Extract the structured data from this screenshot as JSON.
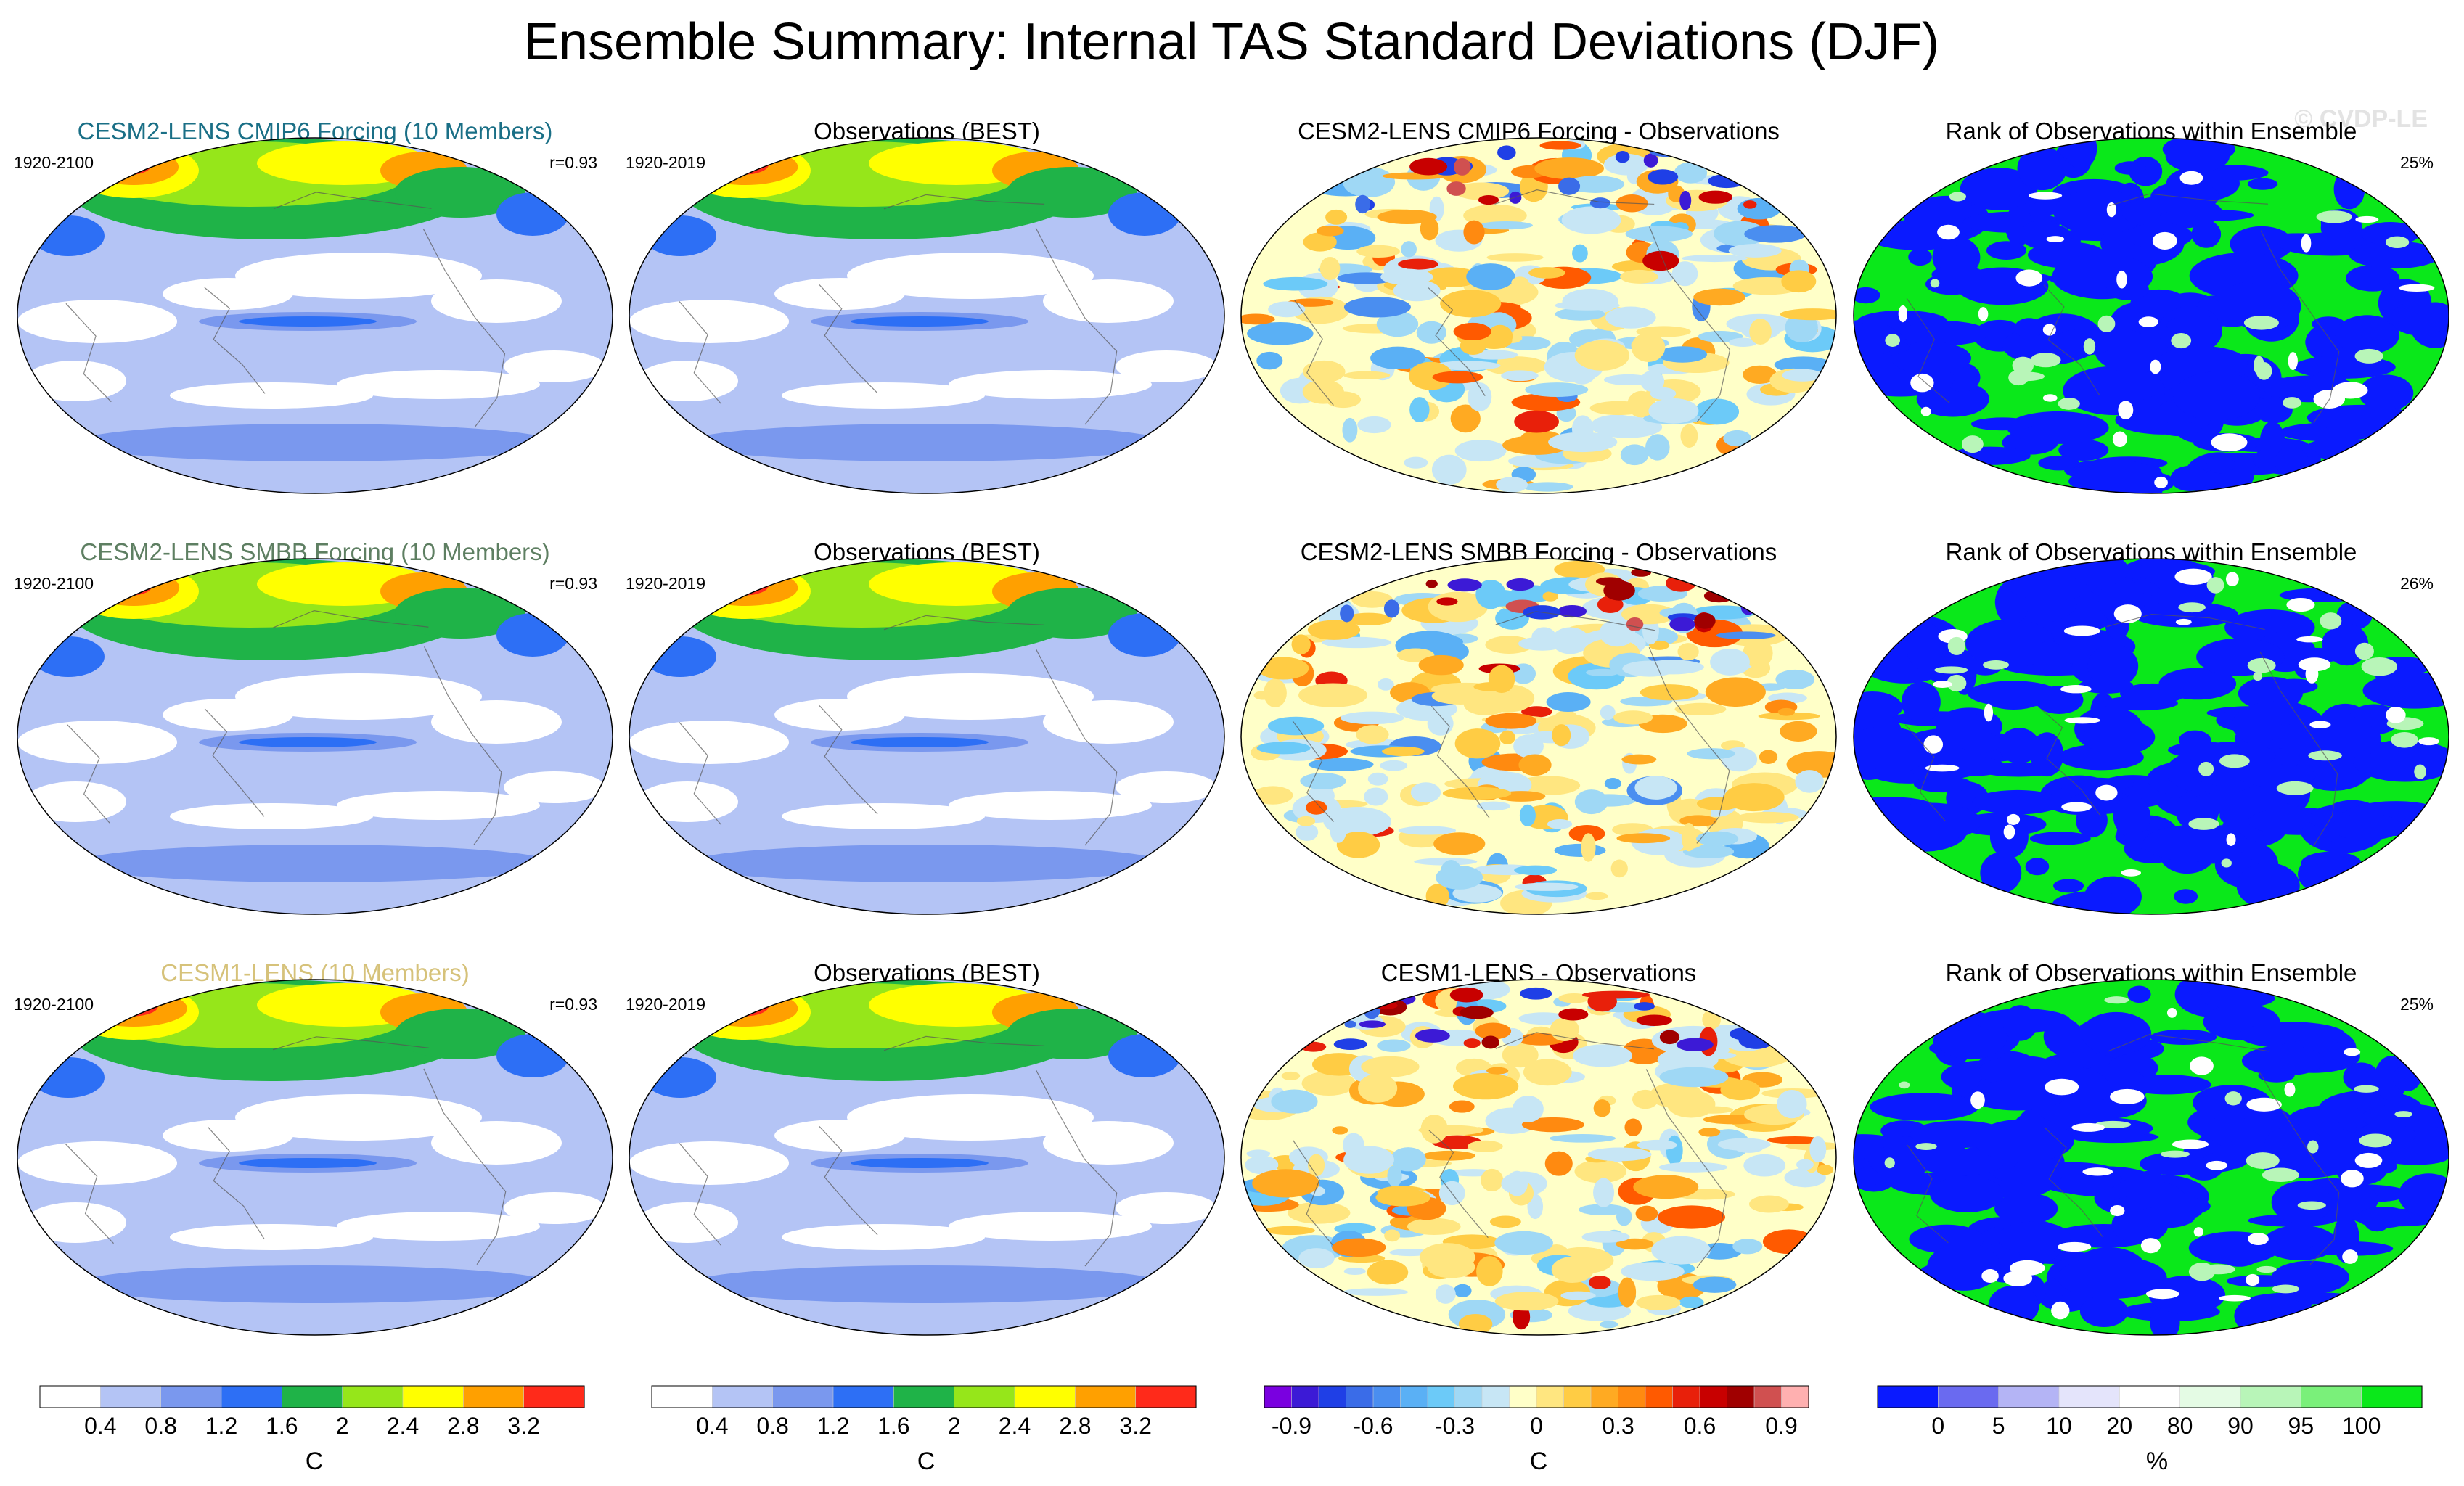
{
  "title": "Ensemble Summary: Internal TAS Standard Deviations (DJF)",
  "watermark": "© CVDP-LE",
  "chart_data": [
    {
      "type": "heatmap",
      "rows": [
        {
          "panels": [
            {
              "title": "CESM2-LENS CMIP6 Forcing (10 Members)",
              "title_color": "#1a6f86",
              "left_label": "1920-2100",
              "right_label": "r=0.93",
              "style": "std",
              "map": "a"
            },
            {
              "title": "Observations (BEST)",
              "title_color": "#000000",
              "left_label": "1920-2019",
              "right_label": "",
              "style": "std",
              "map": "b"
            },
            {
              "title": "CESM2-LENS CMIP6 Forcing - Observations",
              "title_color": "#000000",
              "left_label": "",
              "right_label": "",
              "style": "diff",
              "map": "c"
            },
            {
              "title": "Rank of Observations within Ensemble",
              "title_color": "#000000",
              "left_label": "",
              "right_label": "25%",
              "style": "rank",
              "map": "d"
            }
          ]
        },
        {
          "panels": [
            {
              "title": "CESM2-LENS SMBB Forcing (10 Members)",
              "title_color": "#5e7f62",
              "left_label": "1920-2100",
              "right_label": "r=0.93",
              "style": "std",
              "map": "e"
            },
            {
              "title": "Observations (BEST)",
              "title_color": "#000000",
              "left_label": "1920-2019",
              "right_label": "",
              "style": "std",
              "map": "b"
            },
            {
              "title": "CESM2-LENS SMBB Forcing - Observations",
              "title_color": "#000000",
              "left_label": "",
              "right_label": "",
              "style": "diff",
              "map": "f"
            },
            {
              "title": "Rank of Observations within Ensemble",
              "title_color": "#000000",
              "left_label": "",
              "right_label": "26%",
              "style": "rank",
              "map": "g"
            }
          ]
        },
        {
          "panels": [
            {
              "title": "CESM1-LENS (10 Members)",
              "title_color": "#d6c27a",
              "left_label": "1920-2100",
              "right_label": "r=0.93",
              "style": "std",
              "map": "h"
            },
            {
              "title": "Observations (BEST)",
              "title_color": "#000000",
              "left_label": "1920-2019",
              "right_label": "",
              "style": "std",
              "map": "b"
            },
            {
              "title": "CESM1-LENS - Observations",
              "title_color": "#000000",
              "left_label": "",
              "right_label": "",
              "style": "diff",
              "map": "i"
            },
            {
              "title": "Rank of Observations within Ensemble",
              "title_color": "#000000",
              "left_label": "",
              "right_label": "25%",
              "style": "rank",
              "map": "j"
            }
          ]
        }
      ]
    }
  ],
  "colorbars": [
    {
      "name": "std-1",
      "unit": "C",
      "colors": [
        "#ffffff",
        "#b4c4f5",
        "#7a98ee",
        "#2d6ff5",
        "#1fb348",
        "#96e61a",
        "#ffff00",
        "#ffa000",
        "#ff2a1a"
      ],
      "labels": [
        "0.4",
        "0.8",
        "1.2",
        "1.6",
        "2",
        "2.4",
        "2.8",
        "3.2"
      ]
    },
    {
      "name": "std-2",
      "unit": "C",
      "colors": [
        "#ffffff",
        "#b4c4f5",
        "#7a98ee",
        "#2d6ff5",
        "#1fb348",
        "#96e61a",
        "#ffff00",
        "#ffa000",
        "#ff2a1a"
      ],
      "labels": [
        "0.4",
        "0.8",
        "1.2",
        "1.6",
        "2",
        "2.4",
        "2.8",
        "3.2"
      ]
    },
    {
      "name": "diff",
      "unit": "C",
      "colors": [
        "#7a00e0",
        "#3c1ad6",
        "#1f3fe6",
        "#3a6ce8",
        "#4a8ef0",
        "#5ab0f5",
        "#6ccaf8",
        "#9fd8f5",
        "#c7e6f5",
        "#ffffc8",
        "#ffe680",
        "#ffcc44",
        "#ffaa22",
        "#ff8a10",
        "#ff5a00",
        "#e8200a",
        "#c80000",
        "#a00000",
        "#d05050",
        "#ffb0b0"
      ],
      "labels": [
        "-0.9",
        "-0.6",
        "-0.3",
        "0",
        "0.3",
        "0.6",
        "0.9"
      ]
    },
    {
      "name": "rank",
      "unit": "%",
      "colors": [
        "#0a1aff",
        "#6a6af0",
        "#b4b4f5",
        "#e4e4fb",
        "#ffffff",
        "#e4fbe4",
        "#b8f5b8",
        "#7af07a",
        "#0ae81a"
      ],
      "labels": [
        "0",
        "5",
        "10",
        "20",
        "80",
        "90",
        "95",
        "100"
      ]
    }
  ]
}
